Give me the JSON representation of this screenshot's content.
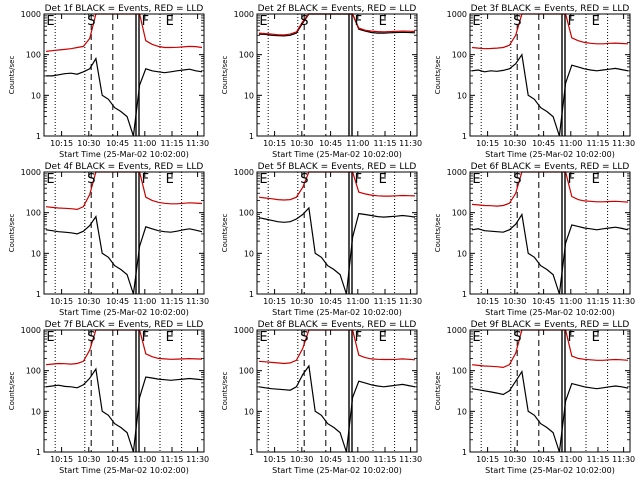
{
  "figure": {
    "xlabel": "Start Time (25-Mar-02 10:02:00)",
    "ylabel": "Counts/sec",
    "marker_labels": [
      "E",
      "S",
      "F",
      "E"
    ]
  },
  "chart_data": [
    {
      "type": "line",
      "title": "Det 1f BLACK = Events, RED = LLD",
      "x_ticks": [
        "10:15",
        "10:30",
        "10:45",
        "11:00",
        "11:15",
        "11:30"
      ],
      "y_ticks": [
        "1",
        "10",
        "100",
        "1000"
      ],
      "y_scale": "log",
      "ylim": [
        1,
        1000
      ],
      "series": [
        {
          "color": "#000000",
          "values": [
            30,
            30,
            32,
            34,
            35,
            33,
            38,
            45,
            80,
            10,
            8,
            5,
            4,
            3,
            1,
            18,
            45,
            40,
            38,
            36,
            38,
            40,
            42,
            44,
            40,
            38
          ]
        },
        {
          "color": "#cc0000",
          "values": [
            120,
            125,
            130,
            135,
            140,
            150,
            160,
            250,
            1000,
            1000,
            1000,
            1000,
            1000,
            1000,
            1000,
            1000,
            220,
            180,
            160,
            150,
            150,
            152,
            155,
            160,
            158,
            150
          ]
        }
      ]
    },
    {
      "type": "line",
      "title": "Det 2f BLACK = Events, RED = LLD",
      "x_ticks": [
        "10:15",
        "10:30",
        "10:45",
        "11:00",
        "11:15",
        "11:30"
      ],
      "y_ticks": [
        "1",
        "10",
        "100",
        "1000"
      ],
      "y_scale": "log",
      "ylim": [
        1,
        1000
      ],
      "series": [
        {
          "color": "#000000",
          "values": [
            320,
            315,
            300,
            295,
            290,
            300,
            340,
            600,
            1000,
            1000,
            1000,
            1000,
            1000,
            1000,
            1000,
            1000,
            420,
            380,
            350,
            340,
            340,
            345,
            350,
            355,
            350,
            345
          ]
        },
        {
          "color": "#cc0000",
          "values": [
            340,
            330,
            320,
            310,
            305,
            320,
            360,
            650,
            1000,
            1000,
            1000,
            1000,
            1000,
            1000,
            1000,
            1000,
            450,
            400,
            380,
            370,
            365,
            370,
            375,
            380,
            378,
            372
          ]
        }
      ]
    },
    {
      "type": "line",
      "title": "Det 3f BLACK = Events, RED = LLD",
      "x_ticks": [
        "10:15",
        "10:30",
        "10:45",
        "11:00",
        "11:15",
        "11:30"
      ],
      "y_ticks": [
        "1",
        "10",
        "100",
        "1000"
      ],
      "y_scale": "log",
      "ylim": [
        1,
        1000
      ],
      "series": [
        {
          "color": "#000000",
          "values": [
            40,
            42,
            38,
            40,
            39,
            41,
            45,
            60,
            100,
            10,
            8,
            5,
            4,
            3,
            1,
            20,
            55,
            50,
            45,
            42,
            40,
            42,
            44,
            46,
            43,
            40
          ]
        },
        {
          "color": "#cc0000",
          "values": [
            150,
            145,
            140,
            142,
            145,
            150,
            170,
            300,
            1000,
            1000,
            1000,
            1000,
            1000,
            1000,
            1000,
            1000,
            260,
            220,
            200,
            190,
            185,
            185,
            190,
            192,
            188,
            185
          ]
        }
      ]
    },
    {
      "type": "line",
      "title": "Det 4f BLACK = Events, RED = LLD",
      "x_ticks": [
        "10:15",
        "10:30",
        "10:45",
        "11:00",
        "11:15",
        "11:30"
      ],
      "y_ticks": [
        "1",
        "10",
        "100",
        "1000"
      ],
      "y_scale": "log",
      "ylim": [
        1,
        1000
      ],
      "series": [
        {
          "color": "#000000",
          "values": [
            38,
            36,
            34,
            33,
            32,
            30,
            35,
            48,
            80,
            10,
            8,
            5,
            4,
            3,
            1,
            15,
            45,
            40,
            36,
            34,
            33,
            35,
            38,
            40,
            37,
            34
          ]
        },
        {
          "color": "#cc0000",
          "values": [
            140,
            135,
            130,
            128,
            125,
            120,
            140,
            280,
            1000,
            1000,
            1000,
            1000,
            1000,
            1000,
            1000,
            1000,
            240,
            200,
            180,
            170,
            165,
            165,
            170,
            175,
            172,
            168
          ]
        }
      ]
    },
    {
      "type": "line",
      "title": "Det 5f BLACK = Events, RED = LLD",
      "x_ticks": [
        "10:15",
        "10:30",
        "10:45",
        "11:00",
        "11:15",
        "11:30"
      ],
      "y_ticks": [
        "1",
        "10",
        "100",
        "1000"
      ],
      "y_scale": "log",
      "ylim": [
        1,
        1000
      ],
      "series": [
        {
          "color": "#000000",
          "values": [
            75,
            70,
            65,
            60,
            58,
            60,
            70,
            90,
            130,
            10,
            8,
            5,
            4,
            3,
            1,
            25,
            95,
            90,
            85,
            80,
            78,
            80,
            82,
            85,
            82,
            78
          ]
        },
        {
          "color": "#cc0000",
          "values": [
            240,
            230,
            220,
            210,
            205,
            210,
            240,
            420,
            1000,
            1000,
            1000,
            1000,
            1000,
            1000,
            1000,
            1000,
            320,
            290,
            270,
            260,
            255,
            255,
            260,
            265,
            262,
            258
          ]
        }
      ]
    },
    {
      "type": "line",
      "title": "Det 6f BLACK = Events, RED = LLD",
      "x_ticks": [
        "10:15",
        "10:30",
        "10:45",
        "11:00",
        "11:15",
        "11:30"
      ],
      "y_ticks": [
        "1",
        "10",
        "100",
        "1000"
      ],
      "y_scale": "log",
      "ylim": [
        1,
        1000
      ],
      "series": [
        {
          "color": "#000000",
          "values": [
            38,
            40,
            36,
            35,
            34,
            33,
            38,
            52,
            90,
            10,
            8,
            5,
            4,
            3,
            1,
            18,
            50,
            46,
            42,
            40,
            38,
            40,
            42,
            44,
            41,
            38
          ]
        },
        {
          "color": "#cc0000",
          "values": [
            160,
            155,
            150,
            148,
            145,
            150,
            170,
            300,
            1000,
            1000,
            1000,
            1000,
            1000,
            1000,
            1000,
            1000,
            250,
            210,
            195,
            190,
            185,
            185,
            188,
            190,
            186,
            182
          ]
        }
      ]
    },
    {
      "type": "line",
      "title": "Det 7f BLACK = Events, RED = LLD",
      "x_ticks": [
        "10:15",
        "10:30",
        "10:45",
        "11:00",
        "11:15",
        "11:30"
      ],
      "y_ticks": [
        "1",
        "10",
        "100",
        "1000"
      ],
      "y_scale": "log",
      "ylim": [
        1,
        1000
      ],
      "series": [
        {
          "color": "#000000",
          "values": [
            40,
            42,
            44,
            41,
            40,
            38,
            45,
            65,
            110,
            10,
            8,
            5,
            4,
            3,
            1,
            22,
            70,
            66,
            62,
            60,
            58,
            60,
            62,
            64,
            62,
            60
          ]
        },
        {
          "color": "#cc0000",
          "values": [
            140,
            145,
            150,
            148,
            145,
            150,
            170,
            320,
            1000,
            1000,
            1000,
            1000,
            1000,
            1000,
            1000,
            1000,
            260,
            220,
            200,
            195,
            190,
            192,
            195,
            198,
            195,
            192
          ]
        }
      ]
    },
    {
      "type": "line",
      "title": "Det 8f BLACK = Events, RED = LLD",
      "x_ticks": [
        "10:15",
        "10:30",
        "10:45",
        "11:00",
        "11:15",
        "11:30"
      ],
      "y_ticks": [
        "1",
        "10",
        "100",
        "1000"
      ],
      "y_scale": "log",
      "ylim": [
        1,
        1000
      ],
      "series": [
        {
          "color": "#000000",
          "values": [
            40,
            38,
            36,
            35,
            34,
            33,
            40,
            80,
            130,
            10,
            8,
            5,
            4,
            3,
            1,
            22,
            55,
            50,
            45,
            42,
            40,
            42,
            44,
            46,
            43,
            40
          ]
        },
        {
          "color": "#cc0000",
          "values": [
            170,
            165,
            160,
            155,
            150,
            155,
            180,
            350,
            1000,
            1000,
            1000,
            1000,
            1000,
            1000,
            1000,
            1000,
            240,
            210,
            195,
            190,
            188,
            188,
            190,
            195,
            190,
            185
          ]
        }
      ]
    },
    {
      "type": "line",
      "title": "Det 9f BLACK = Events, RED = LLD",
      "x_ticks": [
        "10:15",
        "10:30",
        "10:45",
        "11:00",
        "11:15",
        "11:30"
      ],
      "y_ticks": [
        "1",
        "10",
        "100",
        "1000"
      ],
      "y_scale": "log",
      "ylim": [
        1,
        1000
      ],
      "series": [
        {
          "color": "#000000",
          "values": [
            36,
            34,
            32,
            30,
            28,
            26,
            32,
            55,
            95,
            10,
            8,
            5,
            4,
            3,
            1,
            18,
            48,
            44,
            40,
            38,
            36,
            38,
            40,
            42,
            40,
            37
          ]
        },
        {
          "color": "#cc0000",
          "values": [
            140,
            135,
            130,
            128,
            125,
            120,
            140,
            270,
            1000,
            1000,
            1000,
            1000,
            1000,
            1000,
            1000,
            1000,
            230,
            200,
            190,
            185,
            180,
            180,
            185,
            188,
            185,
            180
          ]
        }
      ]
    }
  ]
}
